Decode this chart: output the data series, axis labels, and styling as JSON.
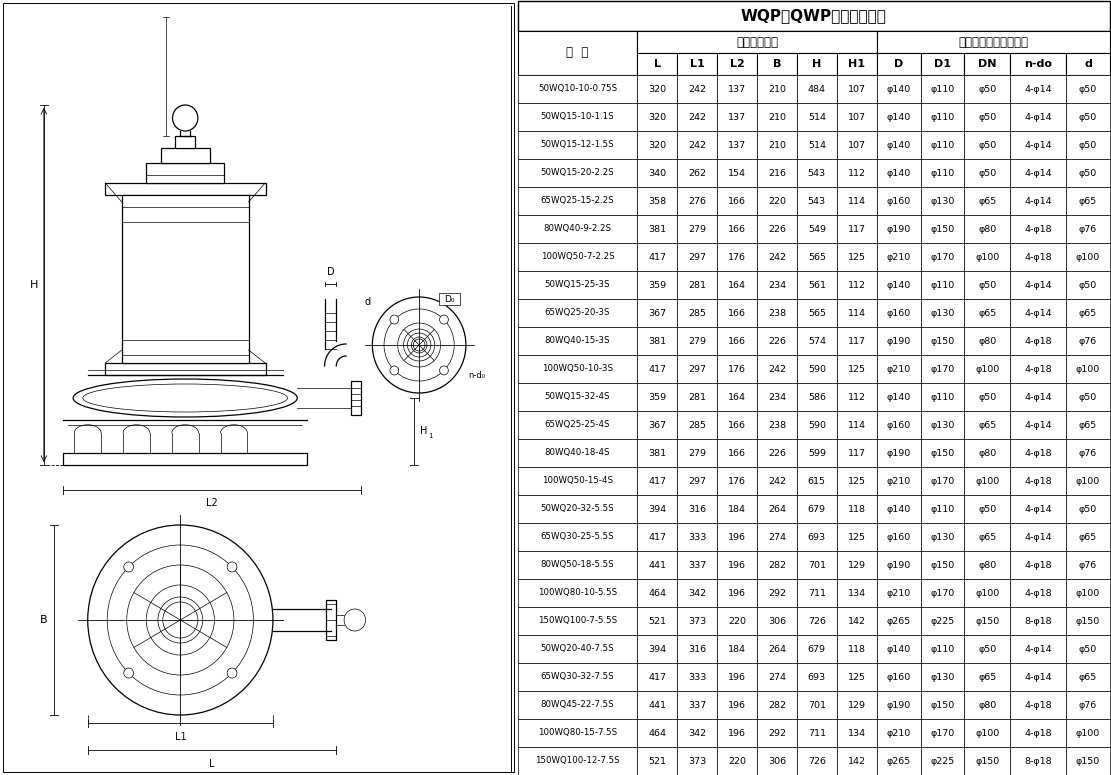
{
  "title": "WQP（QWP）安装尺寸表",
  "group1": "外形安装尺寸",
  "group2": "泵出口法兰及连接尺寸",
  "xingHao": "型  号",
  "headers": [
    "L",
    "L1",
    "L2",
    "B",
    "H",
    "H1",
    "D",
    "D1",
    "DN",
    "n-do",
    "d"
  ],
  "rows": [
    [
      "50WQ10-10-0.75S",
      "320",
      "242",
      "137",
      "210",
      "484",
      "107",
      "φ140",
      "φ110",
      "φ50",
      "4-φ14",
      "φ50"
    ],
    [
      "50WQ15-10-1.1S",
      "320",
      "242",
      "137",
      "210",
      "514",
      "107",
      "φ140",
      "φ110",
      "φ50",
      "4-φ14",
      "φ50"
    ],
    [
      "50WQ15-12-1.5S",
      "320",
      "242",
      "137",
      "210",
      "514",
      "107",
      "φ140",
      "φ110",
      "φ50",
      "4-φ14",
      "φ50"
    ],
    [
      "50WQ15-20-2.2S",
      "340",
      "262",
      "154",
      "216",
      "543",
      "112",
      "φ140",
      "φ110",
      "φ50",
      "4-φ14",
      "φ50"
    ],
    [
      "65WQ25-15-2.2S",
      "358",
      "276",
      "166",
      "220",
      "543",
      "114",
      "φ160",
      "φ130",
      "φ65",
      "4-φ14",
      "φ65"
    ],
    [
      "80WQ40-9-2.2S",
      "381",
      "279",
      "166",
      "226",
      "549",
      "117",
      "φ190",
      "φ150",
      "φ80",
      "4-φ18",
      "φ76"
    ],
    [
      "100WQ50-7-2.2S",
      "417",
      "297",
      "176",
      "242",
      "565",
      "125",
      "φ210",
      "φ170",
      "φ100",
      "4-φ18",
      "φ100"
    ],
    [
      "50WQ15-25-3S",
      "359",
      "281",
      "164",
      "234",
      "561",
      "112",
      "φ140",
      "φ110",
      "φ50",
      "4-φ14",
      "φ50"
    ],
    [
      "65WQ25-20-3S",
      "367",
      "285",
      "166",
      "238",
      "565",
      "114",
      "φ160",
      "φ130",
      "φ65",
      "4-φ14",
      "φ65"
    ],
    [
      "80WQ40-15-3S",
      "381",
      "279",
      "166",
      "226",
      "574",
      "117",
      "φ190",
      "φ150",
      "φ80",
      "4-φ18",
      "φ76"
    ],
    [
      "100WQ50-10-3S",
      "417",
      "297",
      "176",
      "242",
      "590",
      "125",
      "φ210",
      "φ170",
      "φ100",
      "4-φ18",
      "φ100"
    ],
    [
      "50WQ15-32-4S",
      "359",
      "281",
      "164",
      "234",
      "586",
      "112",
      "φ140",
      "φ110",
      "φ50",
      "4-φ14",
      "φ50"
    ],
    [
      "65WQ25-25-4S",
      "367",
      "285",
      "166",
      "238",
      "590",
      "114",
      "φ160",
      "φ130",
      "φ65",
      "4-φ14",
      "φ65"
    ],
    [
      "80WQ40-18-4S",
      "381",
      "279",
      "166",
      "226",
      "599",
      "117",
      "φ190",
      "φ150",
      "φ80",
      "4-φ18",
      "φ76"
    ],
    [
      "100WQ50-15-4S",
      "417",
      "297",
      "176",
      "242",
      "615",
      "125",
      "φ210",
      "φ170",
      "φ100",
      "4-φ18",
      "φ100"
    ],
    [
      "50WQ20-32-5.5S",
      "394",
      "316",
      "184",
      "264",
      "679",
      "118",
      "φ140",
      "φ110",
      "φ50",
      "4-φ14",
      "φ50"
    ],
    [
      "65WQ30-25-5.5S",
      "417",
      "333",
      "196",
      "274",
      "693",
      "125",
      "φ160",
      "φ130",
      "φ65",
      "4-φ14",
      "φ65"
    ],
    [
      "80WQ50-18-5.5S",
      "441",
      "337",
      "196",
      "282",
      "701",
      "129",
      "φ190",
      "φ150",
      "φ80",
      "4-φ18",
      "φ76"
    ],
    [
      "100WQ80-10-5.5S",
      "464",
      "342",
      "196",
      "292",
      "711",
      "134",
      "φ210",
      "φ170",
      "φ100",
      "4-φ18",
      "φ100"
    ],
    [
      "150WQ100-7-5.5S",
      "521",
      "373",
      "220",
      "306",
      "726",
      "142",
      "φ265",
      "φ225",
      "φ150",
      "8-φ18",
      "φ150"
    ],
    [
      "50WQ20-40-7.5S",
      "394",
      "316",
      "184",
      "264",
      "679",
      "118",
      "φ140",
      "φ110",
      "φ50",
      "4-φ14",
      "φ50"
    ],
    [
      "65WQ30-32-7.5S",
      "417",
      "333",
      "196",
      "274",
      "693",
      "125",
      "φ160",
      "φ130",
      "φ65",
      "4-φ14",
      "φ65"
    ],
    [
      "80WQ45-22-7.5S",
      "441",
      "337",
      "196",
      "282",
      "701",
      "129",
      "φ190",
      "φ150",
      "φ80",
      "4-φ18",
      "φ76"
    ],
    [
      "100WQ80-15-7.5S",
      "464",
      "342",
      "196",
      "292",
      "711",
      "134",
      "φ210",
      "φ170",
      "φ100",
      "4-φ18",
      "φ100"
    ],
    [
      "150WQ100-12-7.5S",
      "521",
      "373",
      "220",
      "306",
      "726",
      "142",
      "φ265",
      "φ225",
      "φ150",
      "8-φ18",
      "φ150"
    ]
  ],
  "bg_color": "#ffffff",
  "text_color": "#000000",
  "line_color": "#000000",
  "figure_width": 11.11,
  "figure_height": 7.75
}
